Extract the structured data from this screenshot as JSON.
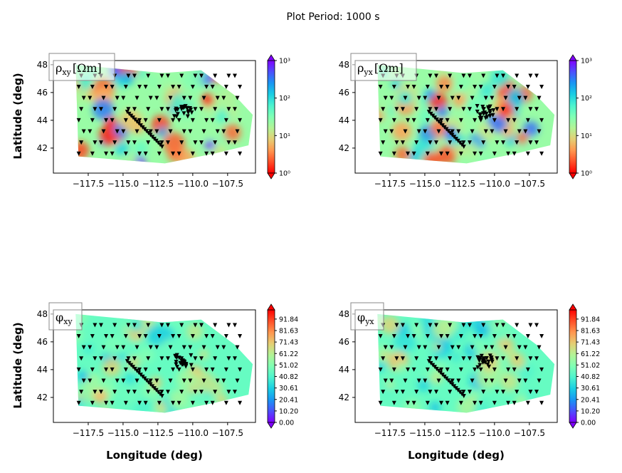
{
  "figure": {
    "suptitle": "Plot Period: 1000 s",
    "xlabel": "Longitude (deg)",
    "ylabel": "Latitude (deg)"
  },
  "chart_data": [
    {
      "type": "heatmap",
      "label": "ρxy [Ωm]",
      "label_symbol": "ρ",
      "label_sub": "xy",
      "label_unit": "[Ωm]",
      "colorbar": {
        "scale": "log",
        "range": [
          1,
          1000
        ],
        "ticks": [
          "10⁰",
          "10¹",
          "10²",
          "10³"
        ],
        "colormap": "rainbow_r"
      },
      "xlim": [
        -120,
        -105.5
      ],
      "ylim": [
        40.2,
        48.3
      ],
      "x_ticks": [
        "−117.5",
        "−115.0",
        "−112.5",
        "−110.0",
        "−107.5"
      ],
      "y_ticks": [
        "42",
        "44",
        "46",
        "48"
      ],
      "show_ylabel": true,
      "show_xlabel": false
    },
    {
      "type": "heatmap",
      "label": "ρyx [Ωm]",
      "label_symbol": "ρ",
      "label_sub": "yx",
      "label_unit": "[Ωm]",
      "colorbar": {
        "scale": "log",
        "range": [
          1,
          1000
        ],
        "ticks": [
          "10⁰",
          "10¹",
          "10²",
          "10³"
        ],
        "colormap": "rainbow_r"
      },
      "xlim": [
        -120,
        -105.5
      ],
      "ylim": [
        40.2,
        48.3
      ],
      "x_ticks": [
        "−117.5",
        "−115.0",
        "−112.5",
        "−110.0",
        "−107.5"
      ],
      "y_ticks": [
        "42",
        "44",
        "46",
        "48"
      ],
      "show_ylabel": false,
      "show_xlabel": false
    },
    {
      "type": "heatmap",
      "label": "φxy",
      "label_symbol": "φ",
      "label_sub": "xy",
      "label_unit": "",
      "colorbar": {
        "scale": "linear",
        "range": [
          0,
          100
        ],
        "ticks": [
          "0.00",
          "10.20",
          "20.41",
          "30.61",
          "40.82",
          "51.02",
          "61.22",
          "71.43",
          "81.63",
          "91.84"
        ],
        "colormap": "rainbow"
      },
      "xlim": [
        -120,
        -105.5
      ],
      "ylim": [
        40.2,
        48.3
      ],
      "x_ticks": [
        "−117.5",
        "−115.0",
        "−112.5",
        "−110.0",
        "−107.5"
      ],
      "y_ticks": [
        "42",
        "44",
        "46",
        "48"
      ],
      "show_ylabel": true,
      "show_xlabel": true
    },
    {
      "type": "heatmap",
      "label": "φyx",
      "label_symbol": "φ",
      "label_sub": "yx",
      "label_unit": "",
      "colorbar": {
        "scale": "linear",
        "range": [
          0,
          100
        ],
        "ticks": [
          "0.00",
          "10.20",
          "20.41",
          "30.61",
          "40.82",
          "51.02",
          "61.22",
          "71.43",
          "81.63",
          "91.84"
        ],
        "colormap": "rainbow"
      },
      "xlim": [
        -120,
        -105.5
      ],
      "ylim": [
        40.2,
        48.3
      ],
      "x_ticks": [
        "−117.5",
        "−115.0",
        "−112.5",
        "−110.0",
        "−107.5"
      ],
      "y_ticks": [
        "42",
        "44",
        "46",
        "48"
      ],
      "show_ylabel": false,
      "show_xlabel": true
    }
  ],
  "stations": {
    "marker": "black downward triangle",
    "grid_lon": [
      -118.0,
      -117.2,
      -116.4,
      -115.6,
      -114.8,
      -114.0,
      -113.2,
      -112.4,
      -111.6,
      -110.8,
      -110.0,
      -109.2,
      -108.4,
      -107.6,
      -106.8
    ],
    "grid_lat": [
      41.6,
      42.4,
      43.2,
      44.0,
      44.8,
      45.6,
      46.4,
      47.2
    ],
    "line_start": [
      -114.7,
      44.6
    ],
    "line_end": [
      -112.2,
      42.1
    ],
    "cluster_center": [
      -110.7,
      44.6
    ]
  },
  "colors": {
    "frame": "#000000",
    "marker": "#000000"
  }
}
